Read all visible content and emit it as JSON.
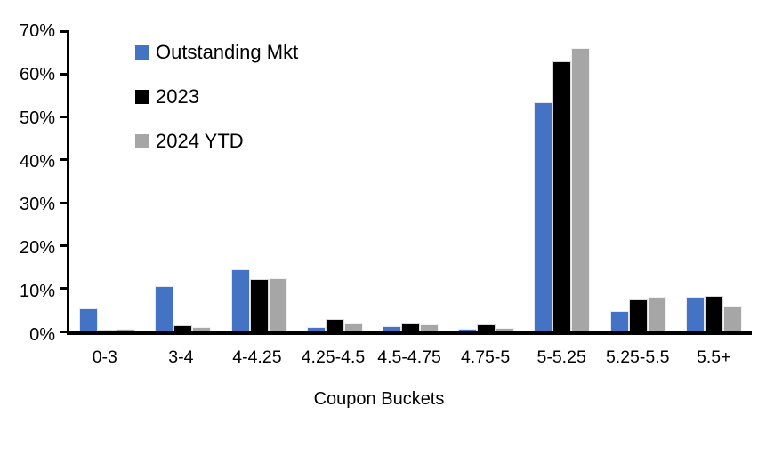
{
  "chart_data": {
    "type": "bar",
    "title": "",
    "xlabel": "Coupon Buckets",
    "ylabel": "",
    "ylim": [
      0,
      70
    ],
    "ytick_step": 10,
    "ytick_labels": [
      "0%",
      "10%",
      "20%",
      "30%",
      "40%",
      "50%",
      "60%",
      "70%"
    ],
    "grid": false,
    "legend_position": "top-left-inside",
    "background_color": "#ffffff",
    "axis_color": "#000000",
    "categories": [
      "0-3",
      "3-4",
      "4-4.25",
      "4.25-4.5",
      "4.5-4.75",
      "4.75-5",
      "5-5.25",
      "5.25-5.5",
      "5.5+"
    ],
    "series": [
      {
        "name": "Outstanding Mkt",
        "color": "#4472C4",
        "values": [
          5.4,
          10.5,
          14.5,
          1.0,
          1.2,
          0.7,
          53.5,
          4.8,
          8.0
        ]
      },
      {
        "name": "2023",
        "color": "#000000",
        "values": [
          0.4,
          1.5,
          12.2,
          2.9,
          1.9,
          1.6,
          63.0,
          7.4,
          8.2
        ]
      },
      {
        "name": "2024 YTD",
        "color": "#A6A6A6",
        "values": [
          0.6,
          1.0,
          12.5,
          1.9,
          1.6,
          0.8,
          66.0,
          8.1,
          6.0
        ]
      }
    ]
  }
}
